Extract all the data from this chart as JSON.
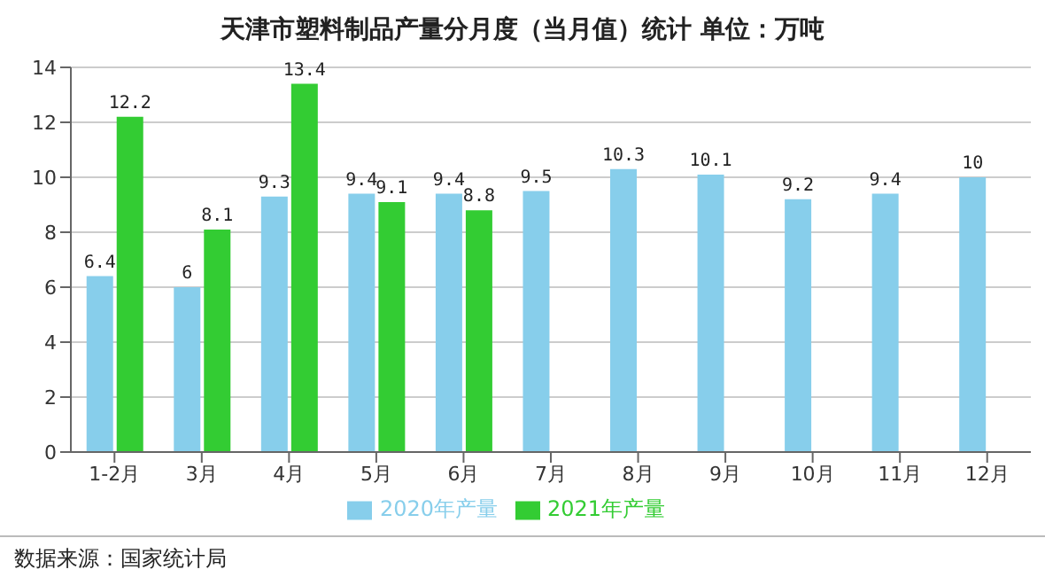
{
  "chart_data": {
    "type": "bar",
    "title": "天津市塑料制品产量分月度（当月值）统计 单位：万吨",
    "categories": [
      "1-2月",
      "3月",
      "4月",
      "5月",
      "6月",
      "7月",
      "8月",
      "9月",
      "10月",
      "11月",
      "12月"
    ],
    "series": [
      {
        "name": "2020年产量",
        "color": "#87ceeb",
        "values": [
          6.4,
          6,
          9.3,
          9.4,
          9.4,
          9.5,
          10.3,
          10.1,
          9.2,
          9.4,
          10
        ]
      },
      {
        "name": "2021年产量",
        "color": "#33cc33",
        "values": [
          12.2,
          8.1,
          13.4,
          9.1,
          8.8,
          null,
          null,
          null,
          null,
          null,
          null
        ]
      }
    ],
    "ylim": [
      0,
      14
    ],
    "yticks": [
      0,
      2,
      4,
      6,
      8,
      10,
      12,
      14
    ],
    "grid": "y",
    "legend": "bottom",
    "data_labels": true,
    "annotations": [
      "数据来源：国家统计局"
    ]
  }
}
